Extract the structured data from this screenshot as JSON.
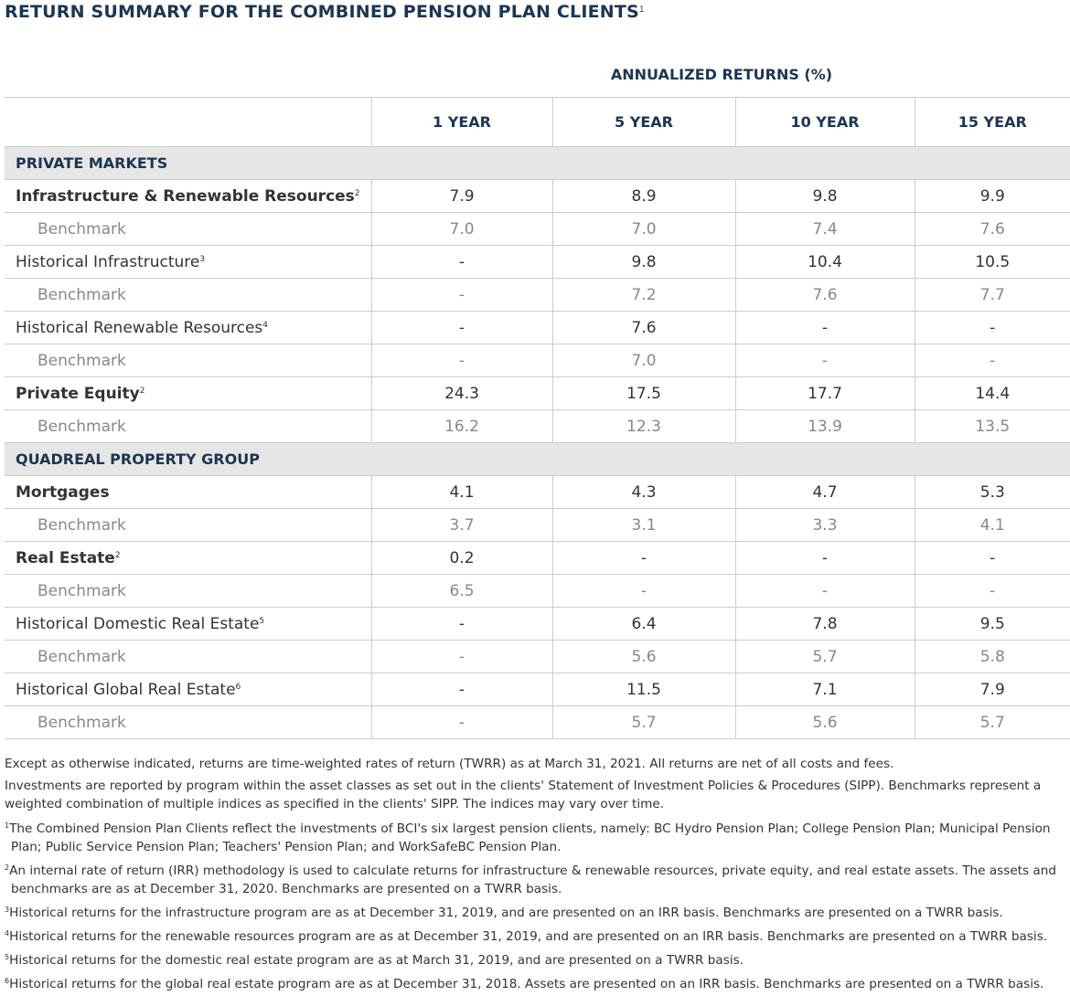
{
  "title": {
    "text": "RETURN SUMMARY FOR THE COMBINED PENSION PLAN CLIENTS",
    "note": "1"
  },
  "table": {
    "group_header": "ANNUALIZED RETURNS (%)",
    "columns": [
      "1 YEAR",
      "5 YEAR",
      "10 YEAR",
      "15 YEAR"
    ],
    "sections": [
      {
        "title": "PRIVATE MARKETS",
        "rows": [
          {
            "label": "Infrastructure & Renewable Resources",
            "note": "2",
            "values": [
              "7.9",
              "8.9",
              "9.8",
              "9.9"
            ]
          },
          {
            "label": "Benchmark",
            "values": [
              "7.0",
              "7.0",
              "7.4",
              "7.6"
            ]
          },
          {
            "label": "Historical Infrastructure",
            "note": "3",
            "values": [
              "-",
              "9.8",
              "10.4",
              "10.5"
            ]
          },
          {
            "label": "Benchmark",
            "values": [
              "-",
              "7.2",
              "7.6",
              "7.7"
            ]
          },
          {
            "label": "Historical Renewable Resources",
            "note": "4",
            "values": [
              "-",
              "7.6",
              "-",
              "-"
            ]
          },
          {
            "label": "Benchmark",
            "values": [
              "-",
              "7.0",
              "-",
              "-"
            ]
          },
          {
            "label": "Private Equity",
            "note": "2",
            "values": [
              "24.3",
              "17.5",
              "17.7",
              "14.4"
            ]
          },
          {
            "label": "Benchmark",
            "values": [
              "16.2",
              "12.3",
              "13.9",
              "13.5"
            ]
          }
        ]
      },
      {
        "title": "QUADREAL PROPERTY GROUP",
        "rows": [
          {
            "label": "Mortgages",
            "values": [
              "4.1",
              "4.3",
              "4.7",
              "5.3"
            ]
          },
          {
            "label": "Benchmark",
            "values": [
              "3.7",
              "3.1",
              "3.3",
              "4.1"
            ]
          },
          {
            "label": "Real Estate",
            "note": "2",
            "values": [
              "0.2",
              "-",
              "-",
              "-"
            ]
          },
          {
            "label": "Benchmark",
            "values": [
              "6.5",
              "-",
              "-",
              "-"
            ]
          },
          {
            "label": "Historical Domestic Real Estate",
            "note": "5",
            "values": [
              "-",
              "6.4",
              "7.8",
              "9.5"
            ]
          },
          {
            "label": "Benchmark",
            "values": [
              "-",
              "5.6",
              "5.7",
              "5.8"
            ]
          },
          {
            "label": "Historical Global Real Estate",
            "note": "6",
            "values": [
              "-",
              "11.5",
              "7.1",
              "7.9"
            ]
          },
          {
            "label": "Benchmark",
            "values": [
              "-",
              "5.7",
              "5.6",
              "5.7"
            ]
          }
        ]
      }
    ]
  },
  "notes": {
    "paragraphs": [
      "Except as otherwise indicated, returns are time-weighted rates of return (TWRR) as at March 31, 2021. All returns are net of all costs and fees.",
      "Investments are reported by program within the asset classes as set out in the clients' Statement of Investment Policies & Procedures (SIPP). Benchmarks represent a weighted combination of multiple indices as specified in the clients' SIPP. The indices may vary over time."
    ],
    "footnotes": [
      {
        "mark": "1",
        "text": "The Combined Pension Plan Clients reflect the investments of BCI's six largest pension clients, namely: BC Hydro Pension Plan; College Pension Plan; Municipal Pension Plan; Public Service Pension Plan; Teachers' Pension Plan; and WorkSafeBC Pension Plan."
      },
      {
        "mark": "2",
        "text": "An internal rate of return (IRR) methodology is used to calculate returns for infrastructure & renewable resources, private equity, and real estate assets. The assets and benchmarks are as at December 31, 2020. Benchmarks are presented on a TWRR basis."
      },
      {
        "mark": "3",
        "text": "Historical returns for the infrastructure program are as at December 31, 2019, and are presented on an IRR basis. Benchmarks are presented on a TWRR basis."
      },
      {
        "mark": "4",
        "text": "Historical returns for the renewable resources program are as at December 31, 2019, and are presented on an IRR basis. Benchmarks are presented on a TWRR basis."
      },
      {
        "mark": "5",
        "text": "Historical returns for the domestic real estate program are as at March 31, 2019, and are presented on a TWRR basis."
      },
      {
        "mark": "6",
        "text": "Historical returns for the global real estate program are as at December 31, 2018. Assets are presented on an IRR basis. Benchmarks are presented on a TWRR basis."
      }
    ]
  }
}
